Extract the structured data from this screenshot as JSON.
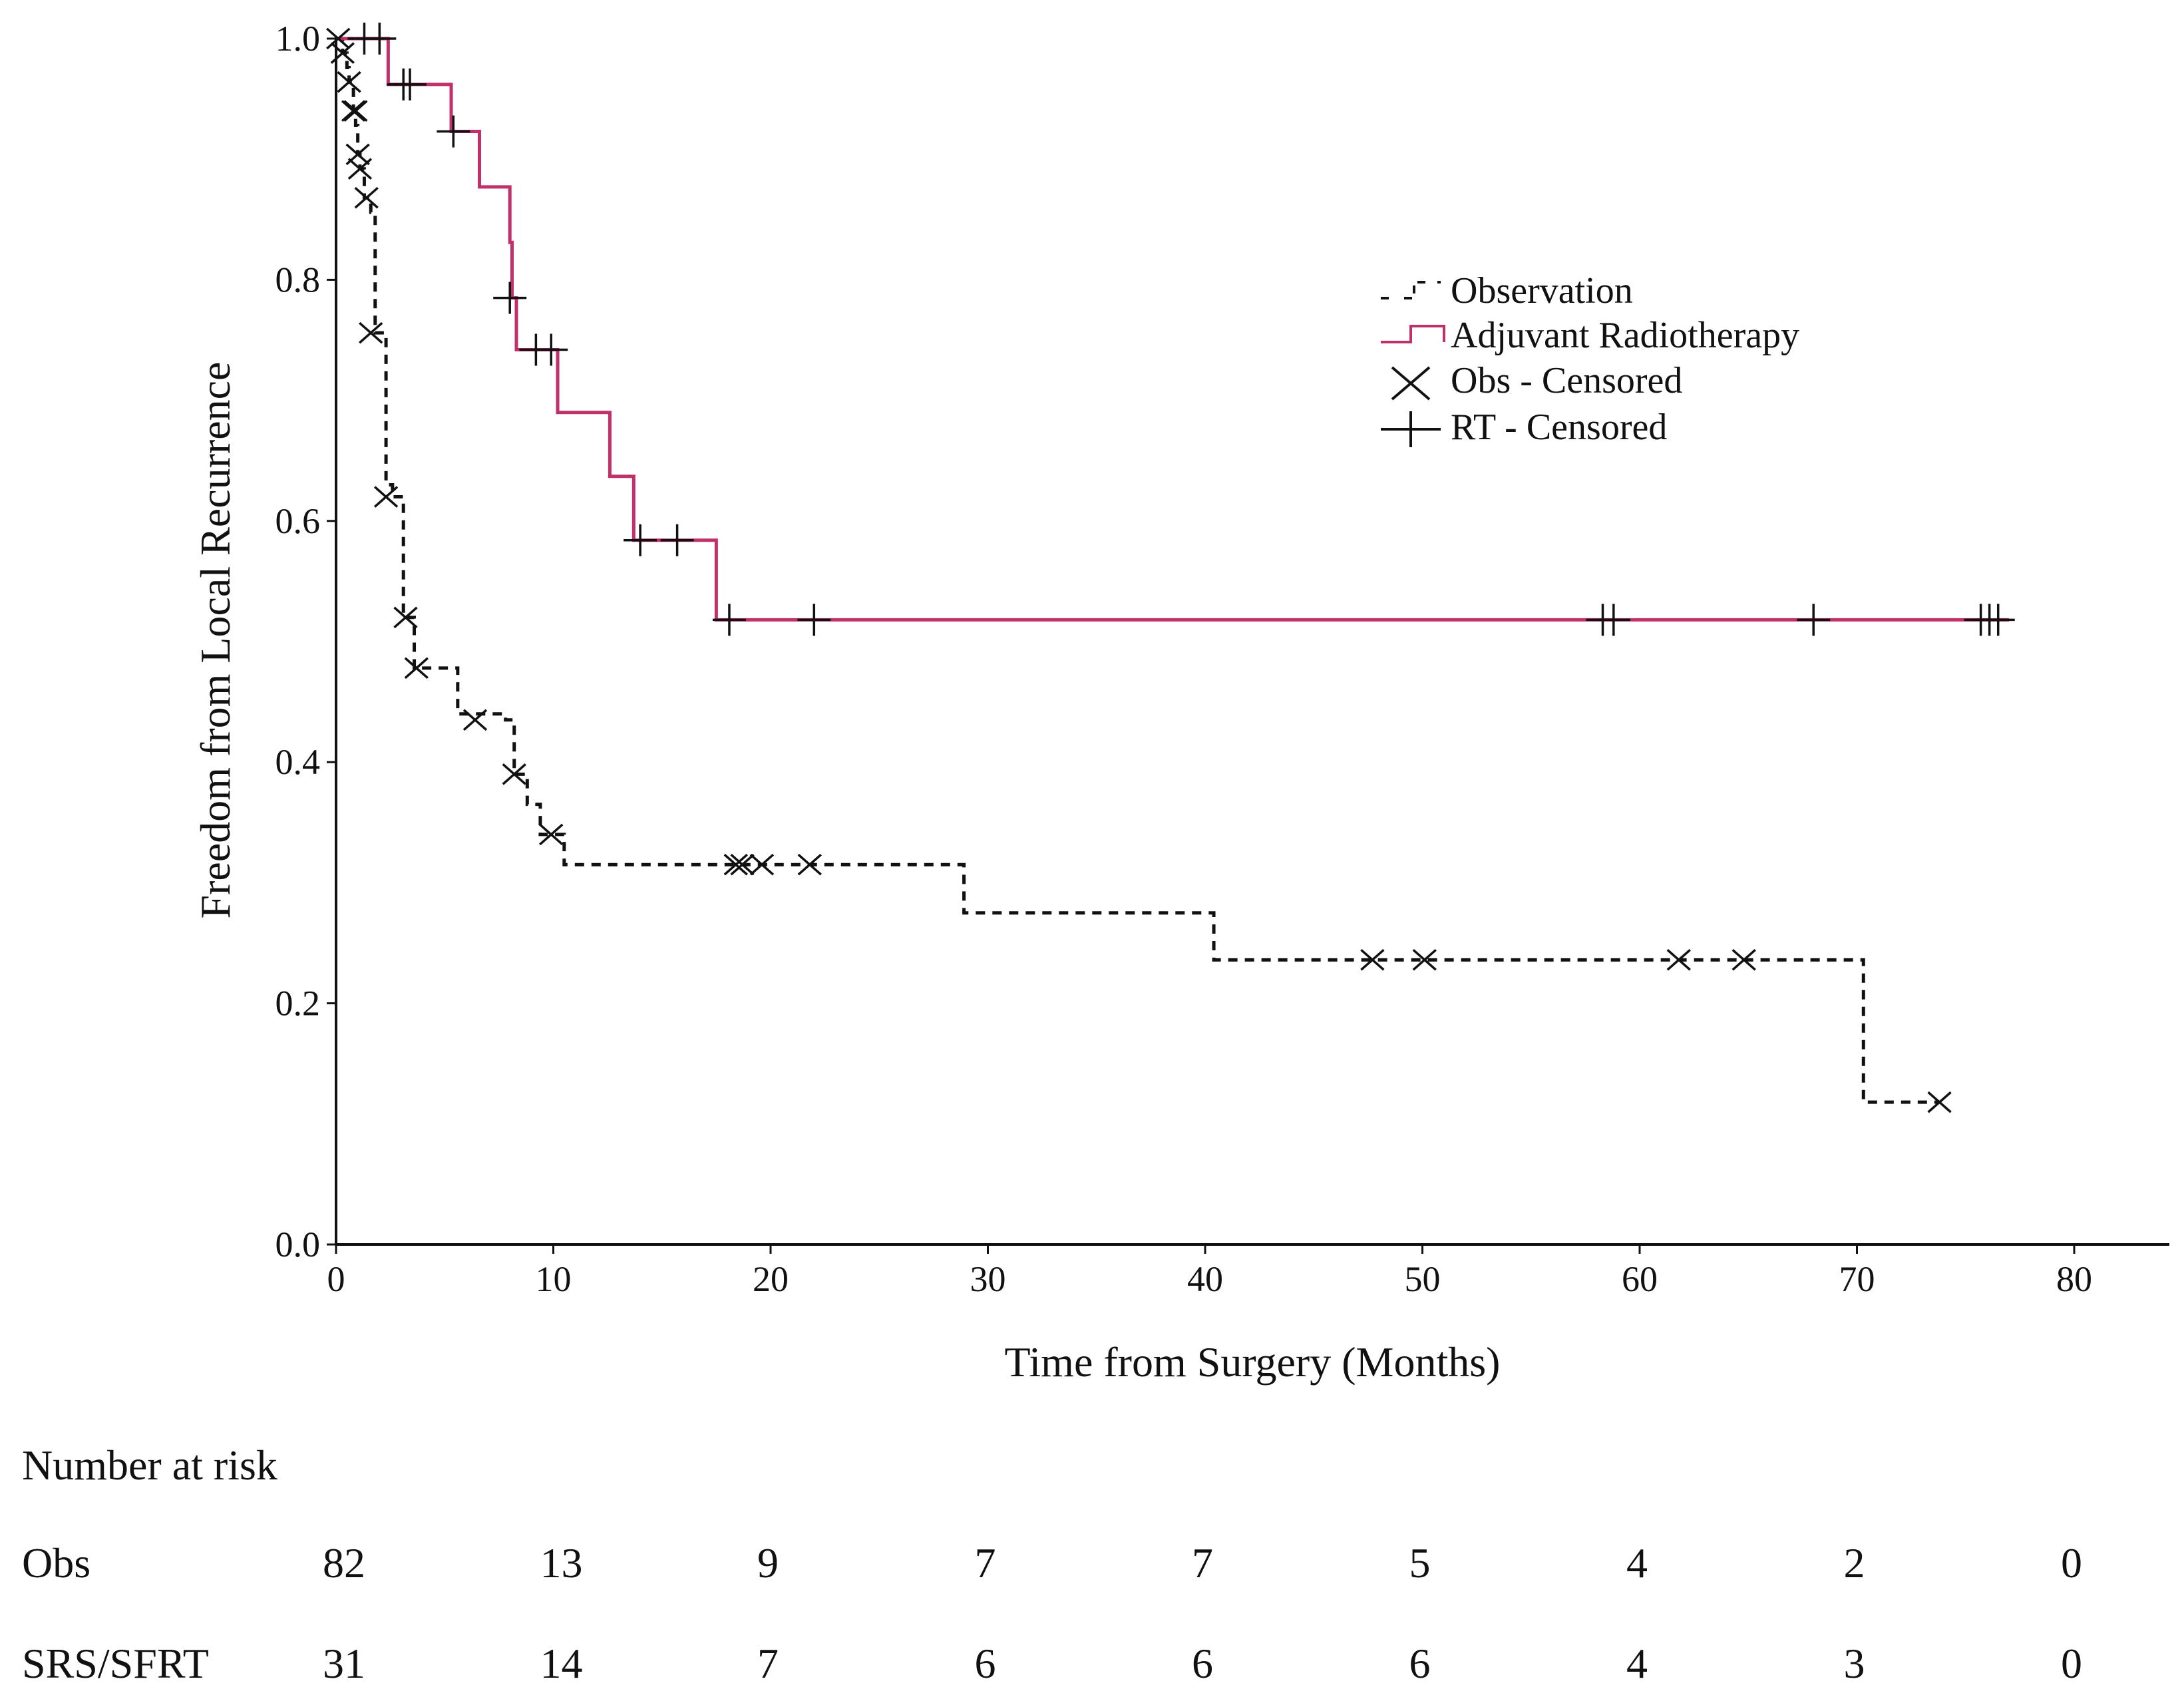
{
  "chart_data": {
    "type": "line",
    "title": "",
    "xlabel": "Time from Surgery (Months)",
    "ylabel": "Freedom from Local Recurrence",
    "xlim": [
      0,
      80
    ],
    "ylim": [
      0,
      1.0
    ],
    "xticks": [
      0,
      10,
      20,
      30,
      40,
      50,
      60,
      70,
      80
    ],
    "yticks": [
      "0.0",
      "0.2",
      "0.4",
      "0.6",
      "0.8",
      "1.0"
    ],
    "legend_position": "upper-right",
    "legend": [
      {
        "label": "Observation",
        "kind": "dashed-line"
      },
      {
        "label": "Adjuvant Radiotherapy",
        "kind": "solid-line"
      },
      {
        "label": "Obs - Censored",
        "kind": "x-marker"
      },
      {
        "label": "RT - Censored",
        "kind": "plus-marker"
      }
    ],
    "series": [
      {
        "name": "Observation",
        "style": "dashed",
        "color": "#111111",
        "steps": [
          [
            0,
            1.0
          ],
          [
            0.3,
            0.988
          ],
          [
            0.5,
            0.976
          ],
          [
            0.6,
            0.964
          ],
          [
            0.8,
            0.94
          ],
          [
            0.9,
            0.928
          ],
          [
            1.0,
            0.904
          ],
          [
            1.1,
            0.892
          ],
          [
            1.3,
            0.868
          ],
          [
            1.6,
            0.856
          ],
          [
            1.8,
            0.756
          ],
          [
            2.3,
            0.63
          ],
          [
            2.6,
            0.62
          ],
          [
            3.1,
            0.52
          ],
          [
            3.6,
            0.478
          ],
          [
            5.5,
            0.478
          ],
          [
            5.6,
            0.44
          ],
          [
            6.6,
            0.44
          ],
          [
            7.8,
            0.435
          ],
          [
            8.2,
            0.39
          ],
          [
            8.8,
            0.365
          ],
          [
            9.4,
            0.34
          ],
          [
            10.5,
            0.315
          ],
          [
            28.8,
            0.315
          ],
          [
            28.9,
            0.275
          ],
          [
            40.3,
            0.275
          ],
          [
            40.4,
            0.236
          ],
          [
            70.2,
            0.236
          ],
          [
            70.3,
            0.118
          ],
          [
            73.8,
            0.118
          ]
        ],
        "censored": [
          [
            0.1,
            1.0
          ],
          [
            0.3,
            0.988
          ],
          [
            0.6,
            0.964
          ],
          [
            0.8,
            0.94
          ],
          [
            0.9,
            0.94
          ],
          [
            1.0,
            0.904
          ],
          [
            1.1,
            0.892
          ],
          [
            1.4,
            0.868
          ],
          [
            1.6,
            0.756
          ],
          [
            2.3,
            0.62
          ],
          [
            3.2,
            0.52
          ],
          [
            3.7,
            0.478
          ],
          [
            6.4,
            0.435
          ],
          [
            8.2,
            0.39
          ],
          [
            9.9,
            0.34
          ],
          [
            18.4,
            0.315
          ],
          [
            18.7,
            0.315
          ],
          [
            19.6,
            0.315
          ],
          [
            21.8,
            0.315
          ],
          [
            47.7,
            0.236
          ],
          [
            50.1,
            0.236
          ],
          [
            61.8,
            0.236
          ],
          [
            64.8,
            0.236
          ],
          [
            73.8,
            0.118
          ]
        ]
      },
      {
        "name": "Adjuvant Radiotherapy",
        "style": "solid",
        "color": "#c0306a",
        "steps": [
          [
            0,
            1.0
          ],
          [
            2.3,
            1.0
          ],
          [
            2.4,
            0.962
          ],
          [
            5.2,
            0.962
          ],
          [
            5.3,
            0.923
          ],
          [
            6.5,
            0.923
          ],
          [
            6.6,
            0.877
          ],
          [
            7.9,
            0.877
          ],
          [
            8.0,
            0.831
          ],
          [
            8.1,
            0.785
          ],
          [
            8.3,
            0.742
          ],
          [
            10.1,
            0.742
          ],
          [
            10.2,
            0.69
          ],
          [
            12.5,
            0.69
          ],
          [
            12.6,
            0.637
          ],
          [
            13.6,
            0.637
          ],
          [
            13.7,
            0.584
          ],
          [
            17.4,
            0.584
          ],
          [
            17.5,
            0.518
          ],
          [
            77.0,
            0.518
          ]
        ],
        "censored": [
          [
            1.3,
            1.0
          ],
          [
            2.0,
            1.0
          ],
          [
            3.1,
            0.962
          ],
          [
            3.4,
            0.962
          ],
          [
            5.4,
            0.923
          ],
          [
            8.0,
            0.785
          ],
          [
            9.2,
            0.742
          ],
          [
            9.9,
            0.742
          ],
          [
            14.0,
            0.584
          ],
          [
            15.7,
            0.584
          ],
          [
            18.1,
            0.518
          ],
          [
            22.0,
            0.518
          ],
          [
            58.3,
            0.518
          ],
          [
            58.8,
            0.518
          ],
          [
            68.0,
            0.518
          ],
          [
            75.7,
            0.518
          ],
          [
            76.1,
            0.518
          ],
          [
            76.5,
            0.518
          ]
        ]
      }
    ]
  },
  "risk_table": {
    "title": "Number at risk",
    "times": [
      0,
      10,
      20,
      30,
      40,
      50,
      60,
      70,
      80
    ],
    "rows": [
      {
        "label": "Obs",
        "values": [
          "82",
          "13",
          "9",
          "7",
          "7",
          "5",
          "4",
          "2",
          "0"
        ]
      },
      {
        "label": "SRS/SFRT",
        "values": [
          "31",
          "14",
          "7",
          "6",
          "6",
          "6",
          "4",
          "3",
          "0"
        ]
      }
    ]
  }
}
